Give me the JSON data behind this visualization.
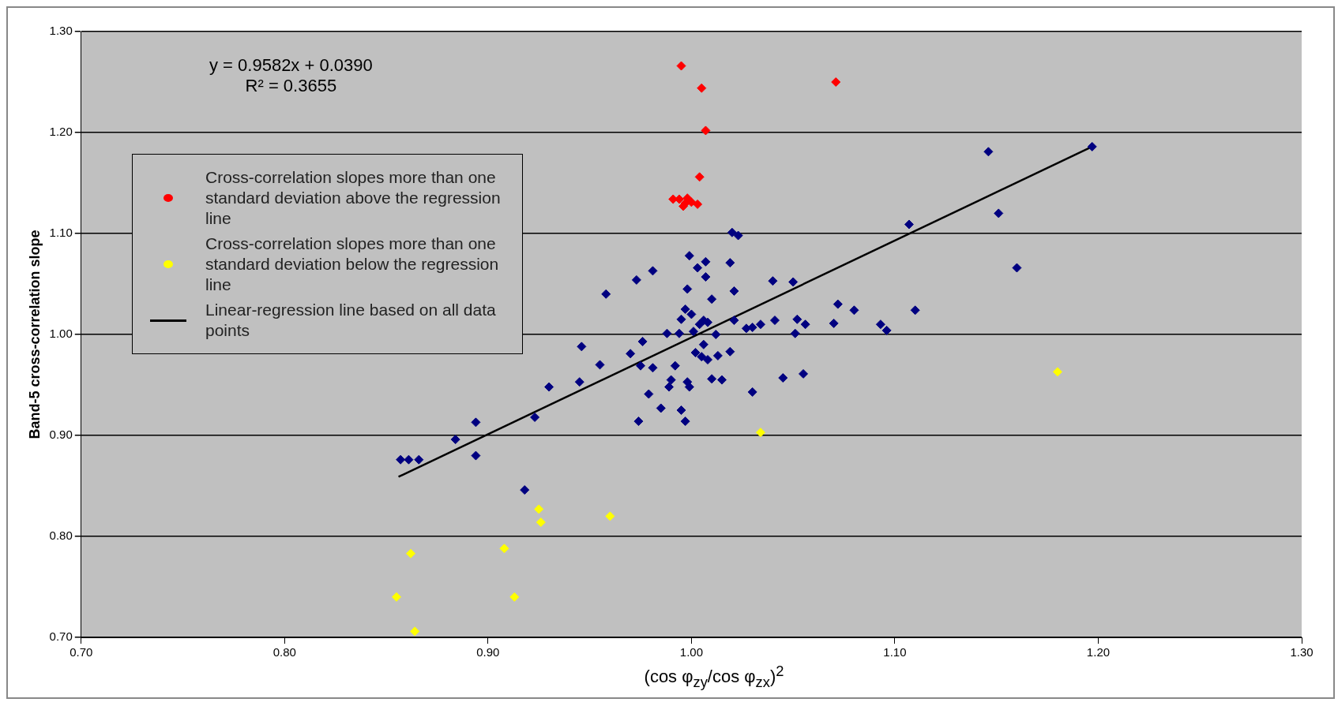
{
  "chart_data": {
    "type": "scatter",
    "xlabel": "(cos φ$_{zy}$/cos φ$_{zx}$)$^{2}$",
    "ylabel": "Band-5 cross-correlation slope",
    "annotations": [
      "y = 0.9582x + 0.0390",
      "R² = 0.3655"
    ],
    "xlim": [
      0.7,
      1.3
    ],
    "ylim": [
      0.7,
      1.3
    ],
    "xticks": [
      {
        "value": 0.7,
        "label": "0.70"
      },
      {
        "value": 0.8,
        "label": "0.80"
      },
      {
        "value": 0.9,
        "label": "0.90"
      },
      {
        "value": 1.0,
        "label": "1.00"
      },
      {
        "value": 1.1,
        "label": "1.10"
      },
      {
        "value": 1.2,
        "label": "1.20"
      },
      {
        "value": 1.3,
        "label": "1.30"
      }
    ],
    "yticks": [
      {
        "value": 0.7,
        "label": "0.70"
      },
      {
        "value": 0.8,
        "label": "0.80"
      },
      {
        "value": 0.9,
        "label": "0.90"
      },
      {
        "value": 1.0,
        "label": "1.00"
      },
      {
        "value": 1.1,
        "label": "1.10"
      },
      {
        "value": 1.2,
        "label": "1.20"
      },
      {
        "value": 1.3,
        "label": "1.30"
      }
    ],
    "grid": "y",
    "legend": "top left",
    "marker": "diamond",
    "series": [
      {
        "color": "#000080",
        "x": [
          0.857,
          0.861,
          0.866,
          0.884,
          0.894,
          0.894,
          0.918,
          0.923,
          0.93,
          0.945,
          0.946,
          0.955,
          0.958,
          0.97,
          0.973,
          0.974,
          0.975,
          0.976,
          0.979,
          0.981,
          0.981,
          0.985,
          0.988,
          0.989,
          0.99,
          0.992,
          0.994,
          0.995,
          0.995,
          0.997,
          0.997,
          0.998,
          0.998,
          0.999,
          0.999,
          1.0,
          1.001,
          1.002,
          1.003,
          1.004,
          1.005,
          1.006,
          1.006,
          1.007,
          1.007,
          1.008,
          1.008,
          1.01,
          1.01,
          1.012,
          1.013,
          1.015,
          1.019,
          1.019,
          1.02,
          1.021,
          1.021,
          1.023,
          1.027,
          1.03,
          1.03,
          1.034,
          1.04,
          1.041,
          1.045,
          1.05,
          1.051,
          1.052,
          1.055,
          1.056,
          1.07,
          1.072,
          1.08,
          1.093,
          1.096,
          1.107,
          1.11,
          1.146,
          1.151,
          1.16,
          1.197
        ],
        "values": [
          0.876,
          0.876,
          0.876,
          0.896,
          0.913,
          0.88,
          0.846,
          0.918,
          0.948,
          0.953,
          0.988,
          0.97,
          1.04,
          0.981,
          1.054,
          0.914,
          0.969,
          0.993,
          0.941,
          1.063,
          0.967,
          0.927,
          1.001,
          0.948,
          0.955,
          0.969,
          1.001,
          1.015,
          0.925,
          1.025,
          0.914,
          0.953,
          1.045,
          1.078,
          0.948,
          1.02,
          1.003,
          0.982,
          1.066,
          1.01,
          0.978,
          1.014,
          0.99,
          1.072,
          1.057,
          0.975,
          1.012,
          1.035,
          0.956,
          1.0,
          0.979,
          0.955,
          1.071,
          0.983,
          1.101,
          1.014,
          1.043,
          1.098,
          1.006,
          1.007,
          0.943,
          1.01,
          1.053,
          1.014,
          0.957,
          1.052,
          1.001,
          1.015,
          0.961,
          1.01,
          1.011,
          1.03,
          1.024,
          1.01,
          1.004,
          1.109,
          1.024,
          1.181,
          1.12,
          1.066,
          1.186
        ]
      },
      {
        "name": "Cross-correlation slopes more than one standard deviation above the regression line",
        "color": "#ff0000",
        "x": [
          0.995,
          1.005,
          1.007,
          1.071,
          1.004,
          0.991,
          0.994,
          0.996,
          0.998,
          1.0,
          1.003,
          0.997
        ],
        "values": [
          1.266,
          1.244,
          1.202,
          1.25,
          1.156,
          1.134,
          1.134,
          1.127,
          1.135,
          1.131,
          1.129,
          1.13
        ]
      },
      {
        "name": "Cross-correlation slopes more than one standard deviation below the regression line",
        "color": "#ffff00",
        "x": [
          0.855,
          0.862,
          0.864,
          0.908,
          0.913,
          0.925,
          0.926,
          0.96,
          1.034,
          1.18
        ],
        "values": [
          0.74,
          0.783,
          0.706,
          0.788,
          0.74,
          0.827,
          0.814,
          0.82,
          0.903,
          0.963
        ]
      },
      {
        "name": "Linear-regression line based on all data points",
        "type": "line",
        "marker": "none",
        "color": "#000000",
        "x": [
          0.856,
          1.197
        ],
        "values": [
          0.859,
          1.186
        ]
      }
    ]
  }
}
